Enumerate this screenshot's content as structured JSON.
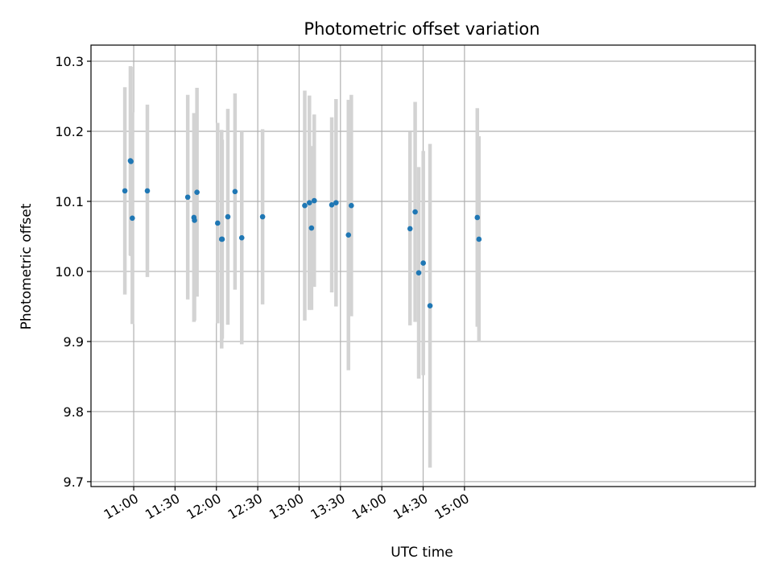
{
  "chart_data": {
    "type": "scatter",
    "title": "Photometric offset variation",
    "xlabel": "UTC time",
    "ylabel": "Photometric offset",
    "grid": true,
    "xlim_minutes": [
      629,
      1111
    ],
    "ylim": [
      9.693,
      10.323
    ],
    "x_ticks": [
      {
        "minutes": 660,
        "label": "11:00"
      },
      {
        "minutes": 690,
        "label": "11:30"
      },
      {
        "minutes": 720,
        "label": "12:00"
      },
      {
        "minutes": 750,
        "label": "12:30"
      },
      {
        "minutes": 780,
        "label": "13:00"
      },
      {
        "minutes": 810,
        "label": "13:30"
      },
      {
        "minutes": 840,
        "label": "14:00"
      },
      {
        "minutes": 870,
        "label": "14:30"
      },
      {
        "minutes": 900,
        "label": "15:00"
      }
    ],
    "y_ticks": [
      {
        "value": 9.7,
        "label": "9.7"
      },
      {
        "value": 9.8,
        "label": "9.8"
      },
      {
        "value": 9.9,
        "label": "9.9"
      },
      {
        "value": 10.0,
        "label": "10.0"
      },
      {
        "value": 10.1,
        "label": "10.1"
      },
      {
        "value": 10.2,
        "label": "10.2"
      },
      {
        "value": 10.3,
        "label": "10.3"
      }
    ],
    "colors": {
      "marker": "#1f77b4",
      "errorbar": "#d3d3d3",
      "grid": "#b0b0b0",
      "axes": "#000000"
    },
    "points": [
      {
        "t": 653.6,
        "y": 10.115,
        "err": 0.148
      },
      {
        "t": 657.6,
        "y": 10.158,
        "err": 0.135
      },
      {
        "t": 658.0,
        "y": 10.157,
        "err": 0.135
      },
      {
        "t": 659.0,
        "y": 10.076,
        "err": 0.151
      },
      {
        "t": 669.9,
        "y": 10.115,
        "err": 0.123
      },
      {
        "t": 699.2,
        "y": 10.106,
        "err": 0.146
      },
      {
        "t": 703.7,
        "y": 10.077,
        "err": 0.149
      },
      {
        "t": 704.1,
        "y": 10.073,
        "err": 0.143
      },
      {
        "t": 705.9,
        "y": 10.113,
        "err": 0.149
      },
      {
        "t": 720.9,
        "y": 10.069,
        "err": 0.143
      },
      {
        "t": 723.8,
        "y": 10.046,
        "err": 0.156
      },
      {
        "t": 724.2,
        "y": 10.046,
        "err": 0.142
      },
      {
        "t": 728.3,
        "y": 10.078,
        "err": 0.154
      },
      {
        "t": 733.5,
        "y": 10.114,
        "err": 0.14
      },
      {
        "t": 738.4,
        "y": 10.048,
        "err": 0.152
      },
      {
        "t": 753.5,
        "y": 10.078,
        "err": 0.125
      },
      {
        "t": 784.1,
        "y": 10.094,
        "err": 0.164
      },
      {
        "t": 787.5,
        "y": 10.098,
        "err": 0.153
      },
      {
        "t": 789.0,
        "y": 10.062,
        "err": 0.117
      },
      {
        "t": 791.0,
        "y": 10.101,
        "err": 0.123
      },
      {
        "t": 803.7,
        "y": 10.095,
        "err": 0.125
      },
      {
        "t": 806.8,
        "y": 10.098,
        "err": 0.148
      },
      {
        "t": 815.8,
        "y": 10.052,
        "err": 0.193
      },
      {
        "t": 817.9,
        "y": 10.094,
        "err": 0.158
      },
      {
        "t": 860.5,
        "y": 10.061,
        "err": 0.138
      },
      {
        "t": 864.2,
        "y": 10.085,
        "err": 0.157
      },
      {
        "t": 866.8,
        "y": 9.998,
        "err": 0.151
      },
      {
        "t": 870.1,
        "y": 10.012,
        "err": 0.16
      },
      {
        "t": 875.0,
        "y": 9.951,
        "err": 0.231
      },
      {
        "t": 909.3,
        "y": 10.077,
        "err": 0.156
      },
      {
        "t": 910.5,
        "y": 10.046,
        "err": 0.147
      }
    ]
  }
}
